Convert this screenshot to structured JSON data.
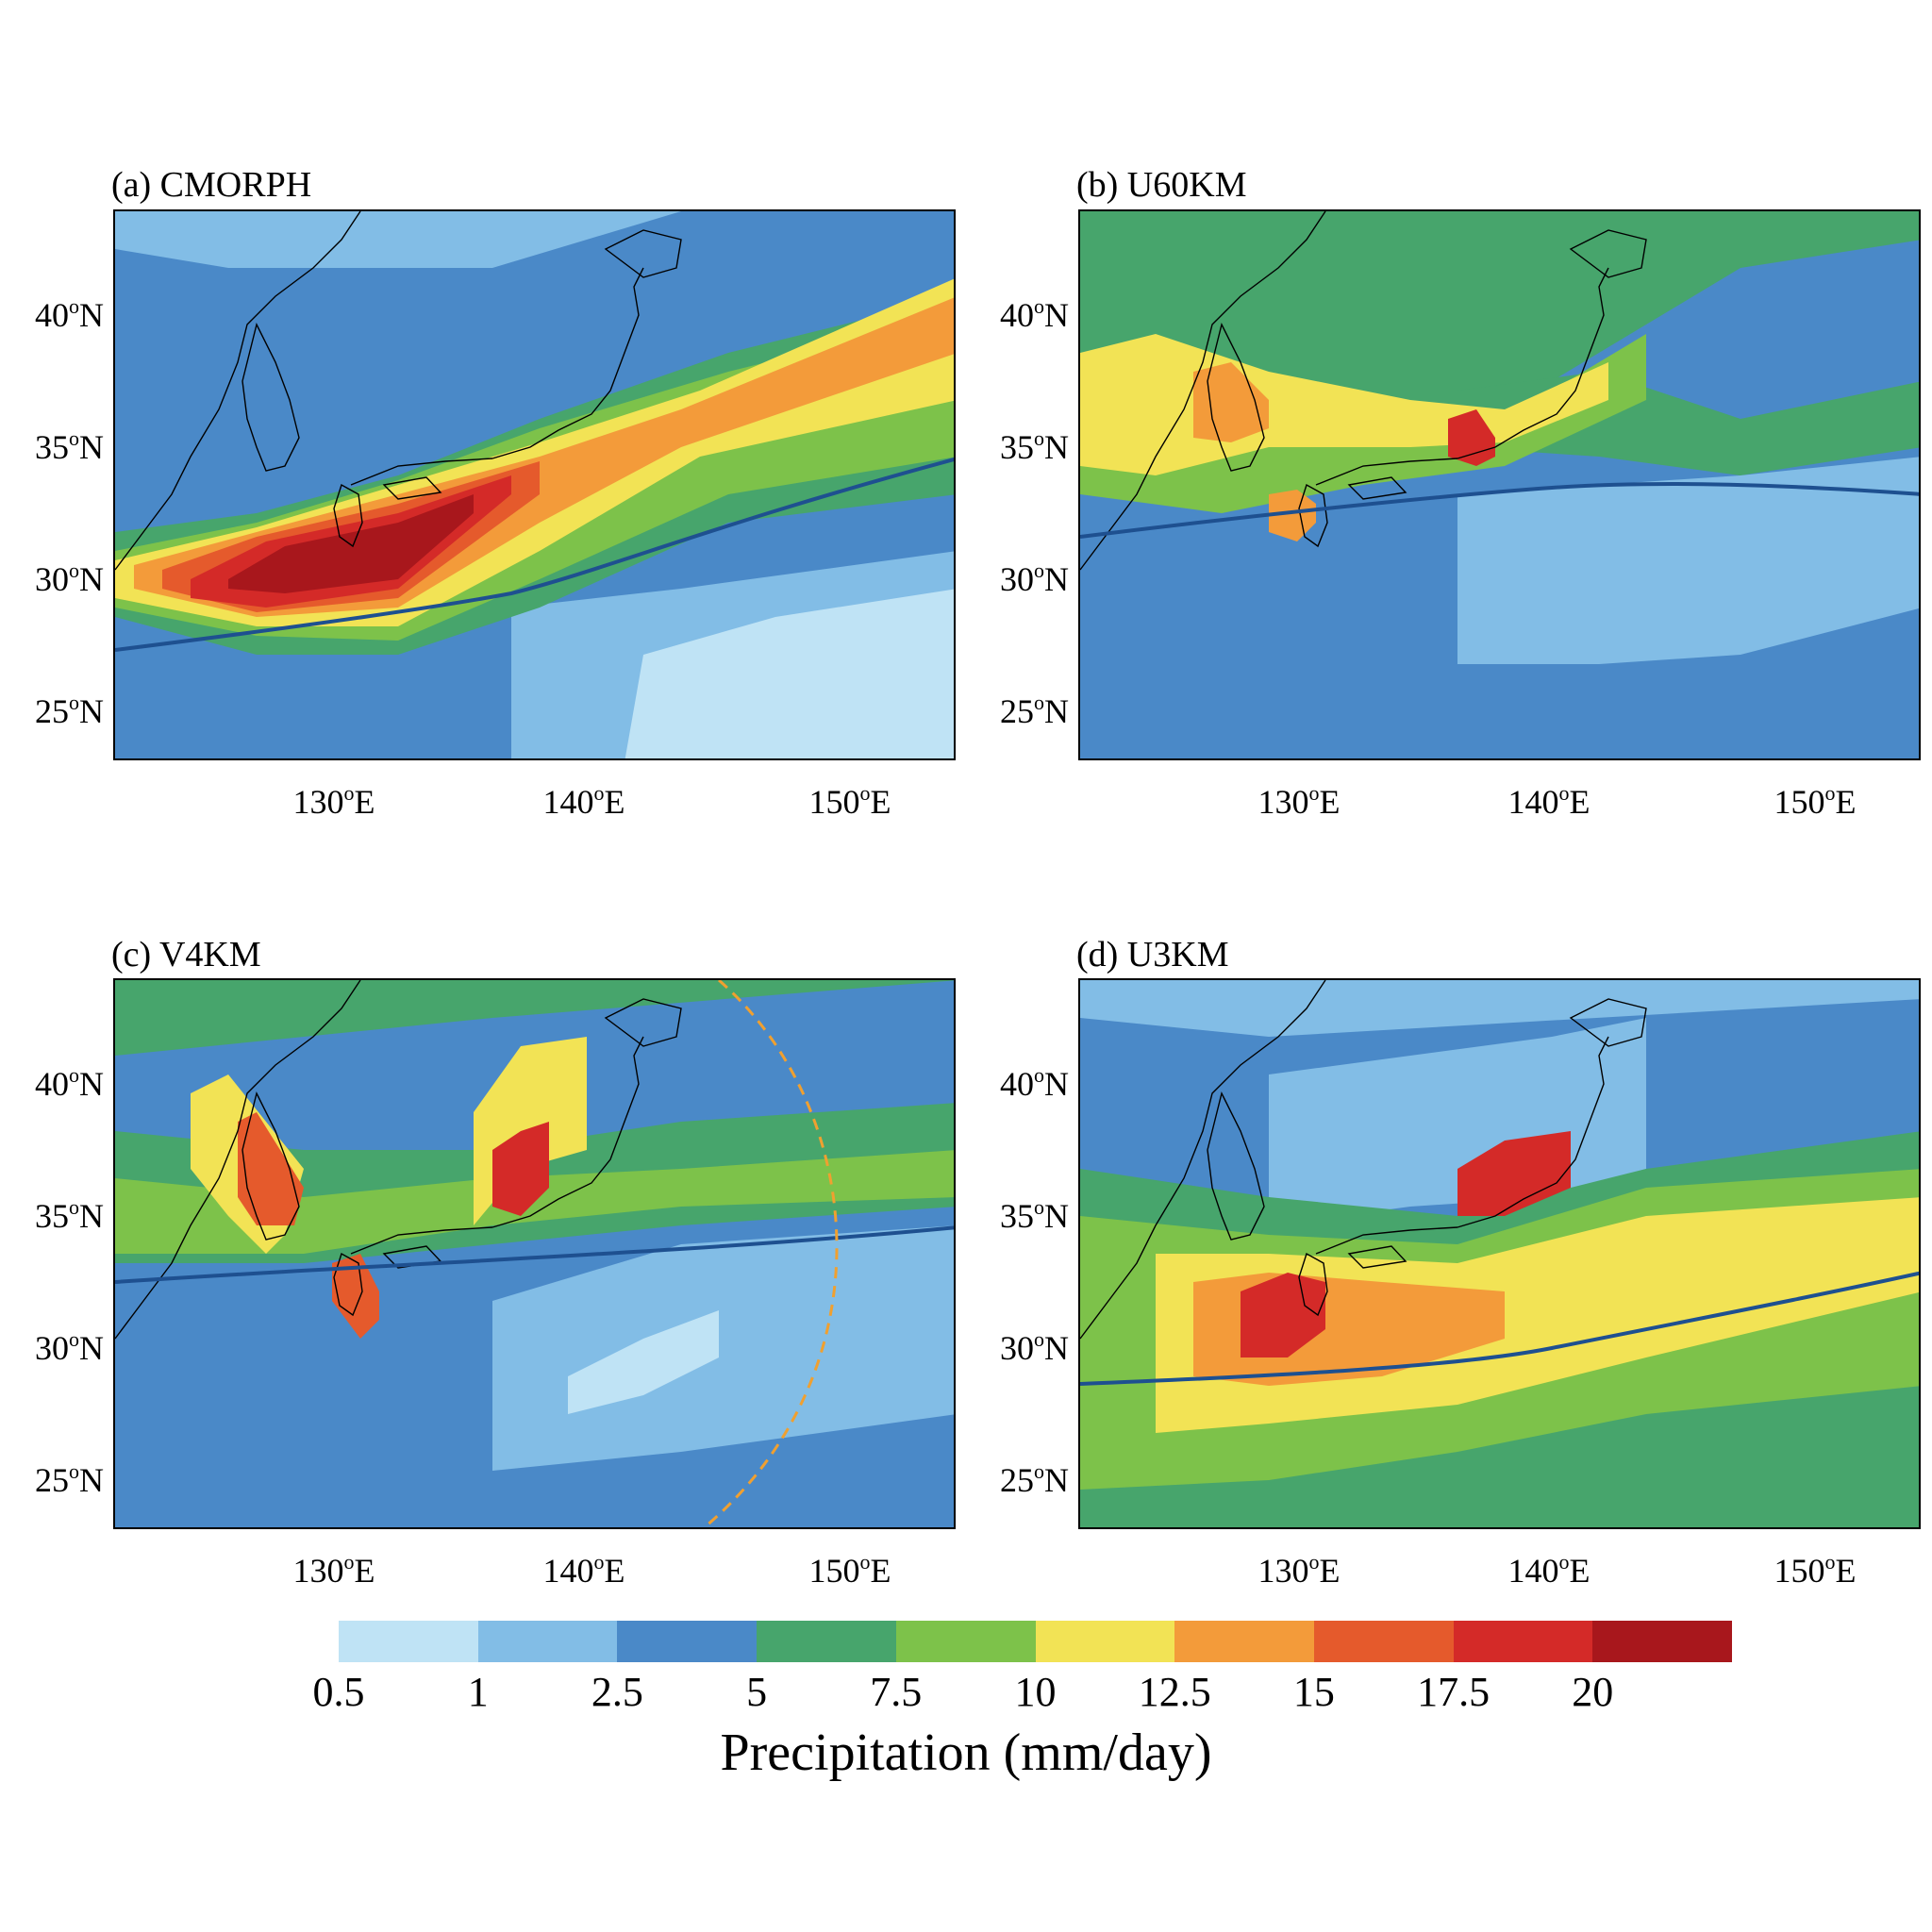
{
  "panels": [
    {
      "id": "a",
      "title": "(a) CMORPH"
    },
    {
      "id": "b",
      "title": "(b) U60KM"
    },
    {
      "id": "c",
      "title": "(c) V4KM"
    },
    {
      "id": "d",
      "title": "(d) U3KM"
    }
  ],
  "lat_ticks": [
    {
      "deg": "40",
      "hemi": "N"
    },
    {
      "deg": "35",
      "hemi": "N"
    },
    {
      "deg": "30",
      "hemi": "N"
    },
    {
      "deg": "25",
      "hemi": "N"
    }
  ],
  "lon_ticks": [
    {
      "deg": "130",
      "hemi": "E"
    },
    {
      "deg": "140",
      "hemi": "E"
    },
    {
      "deg": "150",
      "hemi": "E"
    }
  ],
  "degree_symbol": "o",
  "colorbar": {
    "title": "Precipitation (mm/day)",
    "tick_labels": [
      "0.5",
      "1",
      "2.5",
      "5",
      "7.5",
      "10",
      "12.5",
      "15",
      "17.5",
      "20"
    ],
    "colors": [
      "#bfe3f5",
      "#82bde6",
      "#4a89c8",
      "#47a56c",
      "#7dc24a",
      "#f2e355",
      "#f39b3a",
      "#e55a2c",
      "#d42a28",
      "#a8171c"
    ]
  }
}
